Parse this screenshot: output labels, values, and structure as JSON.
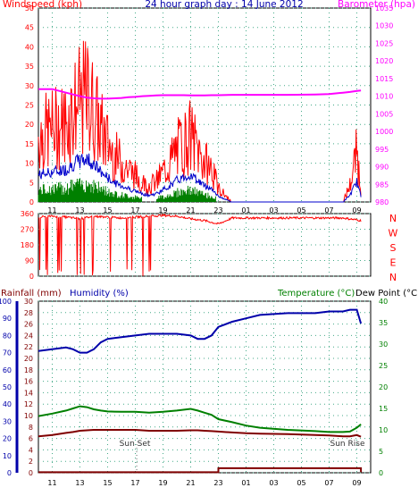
{
  "title": "24 hour graph day : 14 June 2012",
  "colors": {
    "wind_speed": "#ff0000",
    "wind_avg": "#0000cc",
    "wind_green": "#008000",
    "barometer": "#ff00ff",
    "rainfall": "#800000",
    "humidity": "#0000aa",
    "temperature": "#008000",
    "dew_point": "#800000",
    "axis_green": "#008000"
  },
  "top_chart": {
    "left_label": "Windspeed (kph)",
    "right_label": "Barometer (hpa)",
    "left_ticks": [
      "0",
      "5",
      "10",
      "15",
      "20",
      "25",
      "30",
      "35",
      "40",
      "45",
      "50"
    ],
    "right_ticks": [
      "980",
      "985",
      "990",
      "995",
      "1000",
      "1005",
      "1010",
      "1015",
      "1020",
      "1025",
      "1030",
      "1035"
    ],
    "x_ticks": [
      "11",
      "13",
      "15",
      "17",
      "19",
      "21",
      "23",
      "01",
      "03",
      "05",
      "07",
      "09"
    ]
  },
  "dir_chart": {
    "left_ticks": [
      "0",
      "90",
      "180",
      "270",
      "360"
    ],
    "compass": [
      "N",
      "W",
      "S",
      "E",
      "N"
    ]
  },
  "bottom_chart": {
    "rain_label": "Rainfall (mm)",
    "humidity_label": "Humidity (%)",
    "temp_label": "Temperature (°C)",
    "dew_label": "Dew Point (°C)",
    "rain_ticks": [
      "0",
      "2",
      "4",
      "6",
      "8",
      "10",
      "12",
      "14",
      "16",
      "18",
      "20",
      "22",
      "24",
      "26",
      "28",
      "30"
    ],
    "hum_ticks": [
      "0",
      "10",
      "20",
      "30",
      "40",
      "50",
      "60",
      "70",
      "80",
      "90",
      "100"
    ],
    "temp_ticks": [
      "0",
      "5",
      "10",
      "15",
      "20",
      "25",
      "30",
      "35",
      "40"
    ],
    "x_ticks": [
      "11",
      "13",
      "15",
      "17",
      "19",
      "21",
      "23",
      "01",
      "03",
      "05",
      "07",
      "09"
    ],
    "annotations": [
      "Sun Set",
      "Sun Rise"
    ]
  },
  "chart_data": [
    {
      "type": "line",
      "title": "24 hour graph day : 14 June 2012",
      "x_hours": [
        10,
        11,
        12,
        12.5,
        13,
        13.5,
        14,
        14.5,
        15,
        15.5,
        16,
        16.5,
        17,
        17.5,
        18,
        18.5,
        19,
        19.5,
        20,
        20.5,
        21,
        21.5,
        22,
        22.5,
        23,
        24,
        26,
        28,
        30,
        31,
        32,
        32.5,
        33,
        33.3
      ],
      "series": [
        {
          "name": "Windspeed (kph)",
          "axis": "left",
          "values": [
            20,
            22,
            24,
            28,
            30,
            32,
            28,
            22,
            18,
            14,
            12,
            10,
            8,
            6,
            5,
            6,
            9,
            12,
            16,
            18,
            20,
            16,
            12,
            10,
            4,
            0,
            0,
            0,
            0,
            0,
            0,
            5,
            15,
            4
          ]
        },
        {
          "name": "Barometer (hpa)",
          "axis": "right",
          "values": [
            1012,
            1012,
            1011,
            1010.5,
            1010,
            1009.6,
            1009.4,
            1009.3,
            1009.3,
            1009.4,
            1009.5,
            1009.7,
            1009.8,
            1010,
            1010.1,
            1010.2,
            1010.3,
            1010.3,
            1010.3,
            1010.3,
            1010.2,
            1010.2,
            1010.2,
            1010.3,
            1010.3,
            1010.4,
            1010.4,
            1010.4,
            1010.5,
            1010.6,
            1011,
            1011.2,
            1011.5,
            1011.6
          ]
        }
      ],
      "xlabel": "",
      "ylim_left": [
        0,
        50
      ],
      "ylim_right": [
        980,
        1035
      ]
    },
    {
      "type": "scatter",
      "series": [
        {
          "name": "Wind direction",
          "x_hours": [
            10,
            11,
            12,
            13,
            14,
            15,
            16,
            17,
            18,
            19,
            20,
            21,
            22,
            23,
            24,
            28,
            32,
            33.3
          ],
          "values": [
            340,
            345,
            340,
            330,
            345,
            340,
            335,
            340,
            345,
            350,
            345,
            330,
            320,
            300,
            335,
            335,
            335,
            320
          ]
        }
      ],
      "ylim": [
        0,
        360
      ]
    },
    {
      "type": "line",
      "x_hours": [
        10,
        11,
        12,
        12.5,
        13,
        13.5,
        14,
        14.5,
        15,
        16,
        17,
        18,
        19,
        20,
        21,
        21.5,
        22,
        22.5,
        23,
        24,
        25,
        26,
        28,
        30,
        31,
        32,
        32.5,
        33,
        33.3
      ],
      "series": [
        {
          "name": "Humidity (%)",
          "axis": "humidity",
          "values": [
            71,
            72,
            73,
            72,
            70,
            70,
            72,
            76,
            78,
            79,
            80,
            81,
            81,
            81,
            80,
            78,
            78,
            80,
            85,
            88,
            90,
            92,
            93,
            93,
            94,
            94,
            95,
            95,
            87
          ]
        },
        {
          "name": "Temperature (°C)",
          "axis": "temp",
          "values": [
            13.2,
            13.8,
            14.5,
            15,
            15.5,
            15.3,
            14.8,
            14.5,
            14.3,
            14.2,
            14.2,
            14,
            14.2,
            14.5,
            14.9,
            14.5,
            14,
            13.5,
            12.5,
            11.8,
            11,
            10.5,
            10,
            9.7,
            9.5,
            9.5,
            9.6,
            10.5,
            11.3
          ]
        },
        {
          "name": "Dew Point (°C)",
          "axis": "temp",
          "values": [
            8.5,
            8.8,
            9.3,
            9.5,
            9.8,
            9.9,
            10,
            10,
            10,
            10,
            10,
            9.8,
            9.8,
            9.8,
            9.9,
            9.9,
            9.8,
            9.7,
            9.6,
            9.4,
            9.2,
            9.1,
            9,
            8.8,
            8.7,
            8.5,
            8.5,
            8.8,
            8.4
          ]
        },
        {
          "name": "Rainfall (mm)",
          "axis": "rain",
          "values": [
            0.1,
            0.1,
            0.1,
            0.1,
            0.1,
            0.1,
            0.1,
            0.1,
            0.1,
            0.1,
            0.1,
            0.1,
            0.1,
            0.1,
            0.1,
            0.1,
            0.1,
            0.1,
            0.8,
            0.8,
            0.8,
            0.8,
            0.8,
            0.8,
            0.8,
            0.8,
            0.8,
            0.8,
            0.1
          ]
        }
      ],
      "ylim_rain": [
        0,
        30
      ],
      "ylim_humidity": [
        0,
        100
      ],
      "ylim_temp": [
        0,
        40
      ]
    }
  ]
}
